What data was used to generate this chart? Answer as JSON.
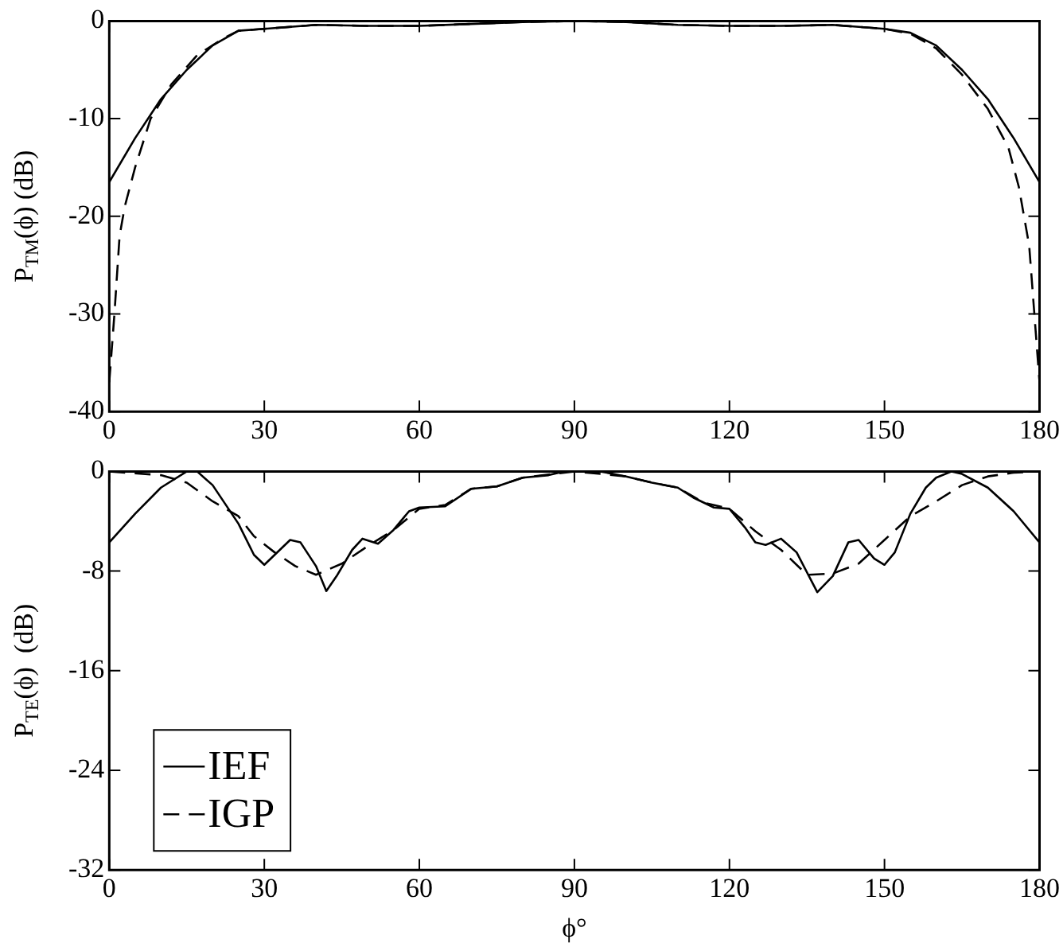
{
  "chart_data": [
    {
      "type": "line",
      "ylabel": "P$_{TM}$(ϕ) (dB)",
      "xlim": [
        0,
        180
      ],
      "xticks": [
        0,
        30,
        60,
        90,
        120,
        150,
        180
      ],
      "ylim": [
        -40,
        0
      ],
      "yticks": [
        -40,
        -30,
        -20,
        -10,
        0
      ],
      "grid": false,
      "legend": false,
      "marker": "none",
      "series": [
        {
          "color": "#000000",
          "line_style": "solid",
          "x": [
            0,
            5,
            10,
            15,
            20,
            25,
            30,
            40,
            50,
            60,
            70,
            80,
            90,
            100,
            110,
            120,
            130,
            140,
            150,
            155,
            160,
            165,
            170,
            175,
            180
          ],
          "values": [
            -16.5,
            -12,
            -8,
            -5,
            -2.5,
            -1,
            -0.8,
            -0.4,
            -0.5,
            -0.5,
            -0.3,
            -0.1,
            0,
            -0.1,
            -0.4,
            -0.5,
            -0.5,
            -0.4,
            -0.8,
            -1.2,
            -2.5,
            -5,
            -8,
            -12,
            -16.5
          ]
        },
        {
          "color": "#000000",
          "line_style": "dashed",
          "x": [
            0,
            1,
            2,
            3,
            5,
            8,
            12,
            17,
            22,
            25,
            30,
            40,
            50,
            60,
            70,
            80,
            90,
            100,
            110,
            120,
            130,
            140,
            150,
            155,
            160,
            165,
            170,
            174,
            176,
            178,
            179,
            180
          ],
          "values": [
            -37,
            -30,
            -22,
            -19,
            -15,
            -10,
            -6.5,
            -3.5,
            -1.8,
            -1,
            -0.8,
            -0.4,
            -0.5,
            -0.5,
            -0.3,
            -0.1,
            0,
            -0.1,
            -0.4,
            -0.5,
            -0.5,
            -0.4,
            -0.8,
            -1.3,
            -2.8,
            -5.5,
            -9,
            -13,
            -17,
            -23,
            -30,
            -37
          ]
        }
      ]
    },
    {
      "type": "line",
      "ylabel": "P$_{TE}$(ϕ)  (dB)",
      "xlabel": "ϕ°",
      "xlim": [
        0,
        180
      ],
      "xticks": [
        0,
        30,
        60,
        90,
        120,
        150,
        180
      ],
      "ylim": [
        -32,
        0
      ],
      "yticks": [
        -32,
        -24,
        -16,
        -8,
        0
      ],
      "grid": false,
      "legend": "bottom left",
      "marker": "none",
      "series": [
        {
          "name": "IEF",
          "color": "#000000",
          "line_style": "solid",
          "x": [
            0,
            5,
            10,
            15,
            17,
            20,
            25,
            28,
            30,
            32,
            35,
            37,
            40,
            42,
            44,
            47,
            49,
            52,
            55,
            58,
            60,
            65,
            70,
            75,
            80,
            85,
            88,
            95,
            100,
            105,
            110,
            113,
            117,
            120,
            123,
            125,
            127,
            130,
            133,
            137,
            140,
            143,
            145,
            148,
            150,
            152,
            155,
            158,
            160,
            163,
            165,
            170,
            175,
            180
          ],
          "values": [
            -5.7,
            -3.4,
            -1.3,
            0,
            0,
            -1.1,
            -4.2,
            -6.7,
            -7.5,
            -6.7,
            -5.5,
            -5.7,
            -7.6,
            -9.6,
            -8.4,
            -6.3,
            -5.4,
            -5.8,
            -4.7,
            -3.2,
            -2.9,
            -2.8,
            -1.4,
            -1.2,
            -0.5,
            -0.3,
            0,
            0,
            -0.4,
            -0.9,
            -1.3,
            -2.1,
            -2.9,
            -3,
            -4.5,
            -5.7,
            -5.9,
            -5.4,
            -6.5,
            -9.7,
            -8.4,
            -5.7,
            -5.5,
            -7,
            -7.5,
            -6.5,
            -3.4,
            -1.3,
            -0.5,
            0,
            -0.2,
            -1.3,
            -3.2,
            -5.7
          ]
        },
        {
          "name": "IGP",
          "color": "#000000",
          "line_style": "dashed",
          "x": [
            0,
            10,
            15,
            20,
            25,
            28,
            32,
            36,
            40,
            45,
            50,
            55,
            60,
            65,
            70,
            75,
            80,
            90,
            100,
            105,
            110,
            115,
            120,
            125,
            130,
            135,
            140,
            145,
            150,
            155,
            160,
            165,
            170,
            175,
            180
          ],
          "values": [
            0,
            -0.3,
            -0.9,
            -2.4,
            -3.6,
            -5.2,
            -6.5,
            -7.6,
            -8.3,
            -7.4,
            -6,
            -4.7,
            -3,
            -2.7,
            -1.4,
            -1.2,
            -0.5,
            0,
            -0.4,
            -0.9,
            -1.3,
            -2.5,
            -3,
            -4.8,
            -6.3,
            -8.3,
            -8.2,
            -7.4,
            -5.5,
            -3.6,
            -2.4,
            -1.1,
            -0.4,
            -0.1,
            0
          ]
        }
      ]
    }
  ]
}
